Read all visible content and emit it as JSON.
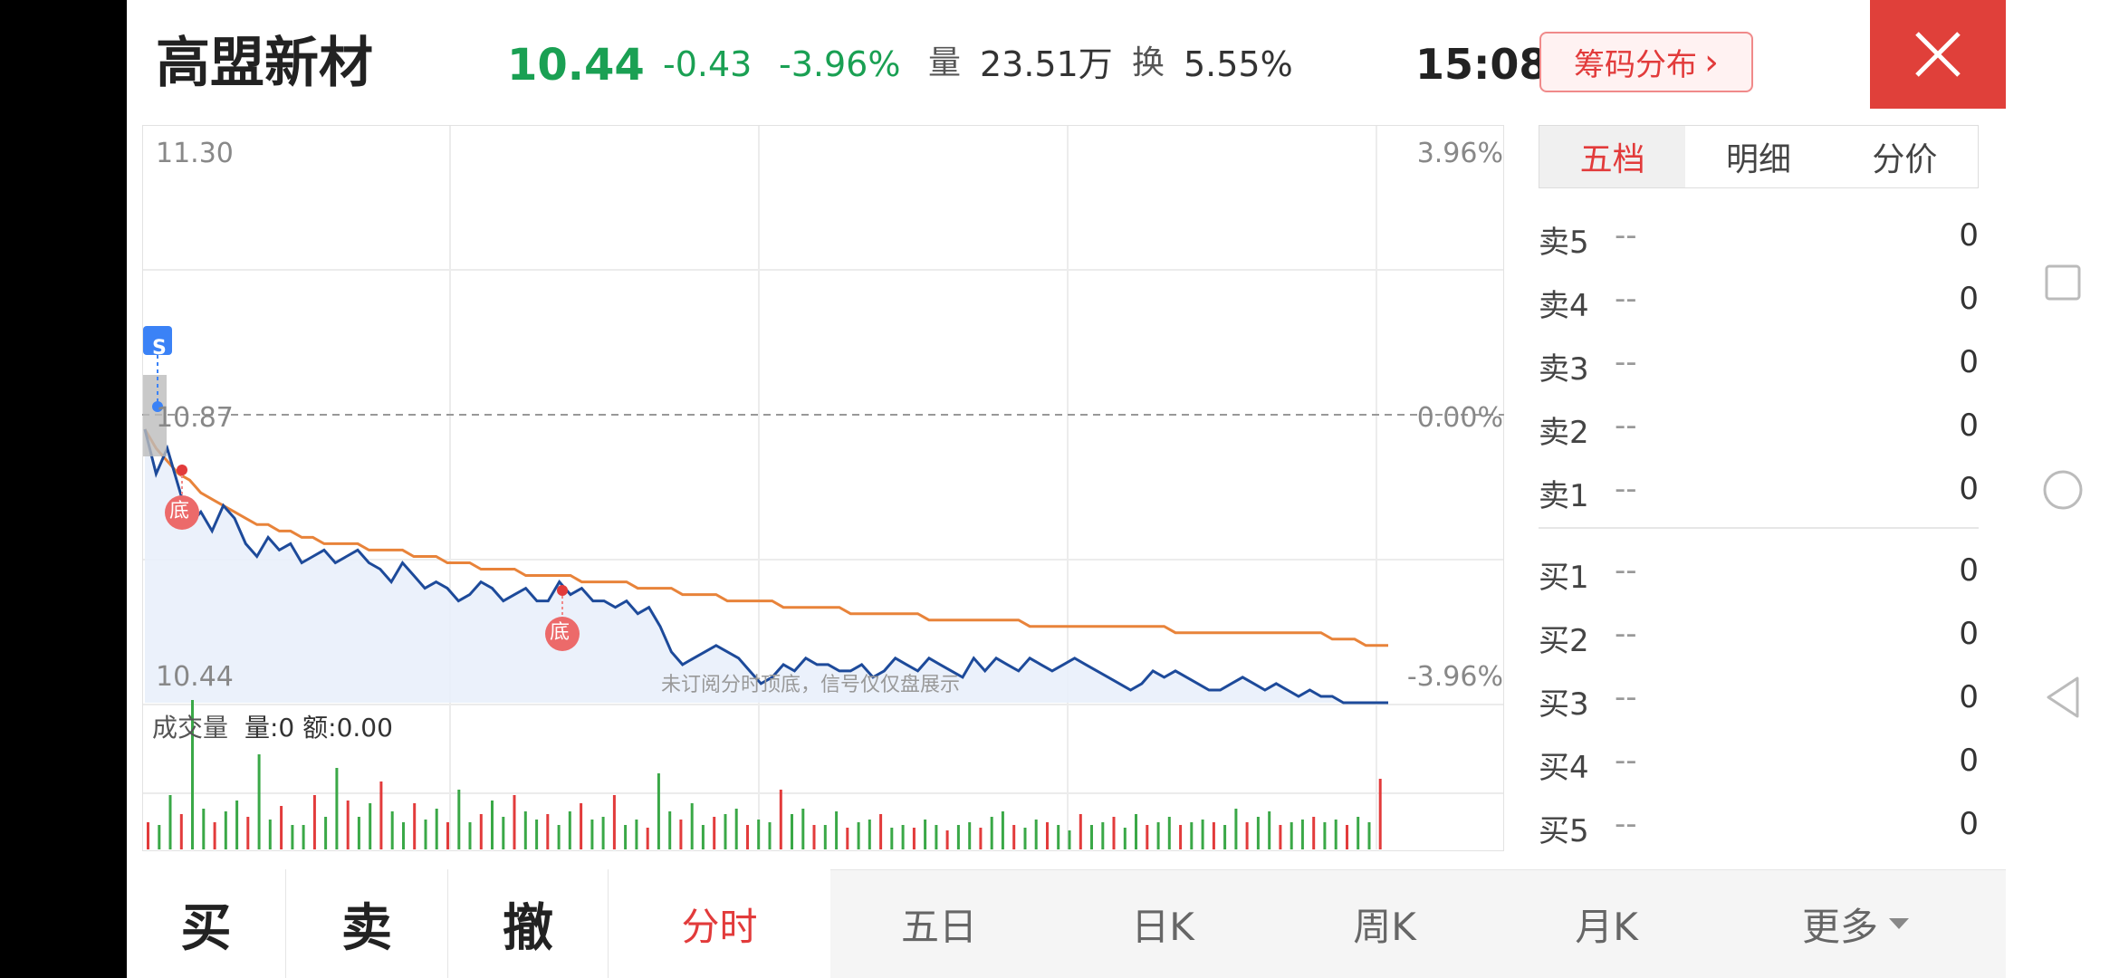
{
  "header": {
    "stock_name": "高盟新材",
    "price": "10.44",
    "change": "-0.43",
    "change_pct": "-3.96%",
    "volume_label": "量",
    "volume": "23.51万",
    "turnover_label": "换",
    "turnover": "5.55%",
    "time": "15:08",
    "chip_button": "筹码分布",
    "chip_arrow": "›"
  },
  "chart": {
    "top_price": "11.30",
    "mid_price": "10.87",
    "bottom_price": "10.44",
    "top_pct": "3.96%",
    "mid_pct": "0.00%",
    "bottom_pct": "-3.96%",
    "signal_s": "S",
    "bottom_marker": "底",
    "watermark": "未订阅分时顶底，信号仅仅盘展示",
    "volume_title": "成交量",
    "volume_stats": "量:0 额:0.00"
  },
  "chart_data": {
    "type": "line",
    "price_range": [
      10.44,
      11.3
    ],
    "series": [
      {
        "values": [
          10.87,
          10.8,
          10.84,
          10.78,
          10.72,
          10.74,
          10.71,
          10.75,
          10.73,
          10.69,
          10.67,
          10.7,
          10.68,
          10.69,
          10.66,
          10.67,
          10.68,
          10.66,
          10.67,
          10.68,
          10.66,
          10.65,
          10.63,
          10.66,
          10.64,
          10.62,
          10.63,
          10.62,
          10.6,
          10.61,
          10.63,
          10.62,
          10.6,
          10.61,
          10.62,
          10.6,
          10.6,
          10.63,
          10.61,
          10.62,
          10.6,
          10.6,
          10.59,
          10.6,
          10.58,
          10.59,
          10.56,
          10.52,
          10.5,
          10.51,
          10.52,
          10.53,
          10.52,
          10.51,
          10.49,
          10.47,
          10.48,
          10.5,
          10.49,
          10.51,
          10.5,
          10.5,
          10.49,
          10.49,
          10.5,
          10.48,
          10.49,
          10.51,
          10.5,
          10.49,
          10.51,
          10.5,
          10.49,
          10.48,
          10.51,
          10.49,
          10.51,
          10.5,
          10.49,
          10.51,
          10.5,
          10.49,
          10.5,
          10.51,
          10.5,
          10.49,
          10.48,
          10.47,
          10.46,
          10.47,
          10.49,
          10.48,
          10.49,
          10.48,
          10.47,
          10.46,
          10.46,
          10.47,
          10.48,
          10.47,
          10.46,
          10.47,
          10.46,
          10.45,
          10.46,
          10.45,
          10.45,
          10.44,
          10.44,
          10.44,
          10.44,
          10.44
        ]
      },
      {
        "values": [
          10.87,
          10.84,
          10.82,
          10.8,
          10.79,
          10.77,
          10.76,
          10.75,
          10.74,
          10.73,
          10.72,
          10.72,
          10.71,
          10.71,
          10.7,
          10.7,
          10.69,
          10.69,
          10.69,
          10.69,
          10.68,
          10.68,
          10.68,
          10.68,
          10.67,
          10.67,
          10.67,
          10.66,
          10.66,
          10.66,
          10.65,
          10.65,
          10.65,
          10.65,
          10.64,
          10.64,
          10.64,
          10.64,
          10.64,
          10.63,
          10.63,
          10.63,
          10.63,
          10.63,
          10.62,
          10.62,
          10.62,
          10.62,
          10.61,
          10.61,
          10.61,
          10.61,
          10.6,
          10.6,
          10.6,
          10.6,
          10.6,
          10.59,
          10.59,
          10.59,
          10.59,
          10.59,
          10.59,
          10.58,
          10.58,
          10.58,
          10.58,
          10.58,
          10.58,
          10.58,
          10.57,
          10.57,
          10.57,
          10.57,
          10.57,
          10.57,
          10.57,
          10.57,
          10.57,
          10.56,
          10.56,
          10.56,
          10.56,
          10.56,
          10.56,
          10.56,
          10.56,
          10.56,
          10.56,
          10.56,
          10.56,
          10.56,
          10.55,
          10.55,
          10.55,
          10.55,
          10.55,
          10.55,
          10.55,
          10.55,
          10.55,
          10.55,
          10.55,
          10.55,
          10.55,
          10.55,
          10.54,
          10.54,
          10.54,
          10.53,
          10.53,
          10.53
        ]
      }
    ],
    "volume": [
      10,
      9,
      20,
      13,
      55,
      15,
      10,
      14,
      18,
      12,
      35,
      11,
      16,
      9,
      9,
      20,
      12,
      30,
      18,
      12,
      17,
      25,
      14,
      10,
      17,
      11,
      15,
      10,
      22,
      10,
      13,
      18,
      12,
      20,
      14,
      11,
      13,
      9,
      14,
      17,
      11,
      12,
      20,
      9,
      11,
      8,
      28,
      14,
      11,
      17,
      9,
      12,
      13,
      15,
      9,
      11,
      10,
      22,
      13,
      15,
      9,
      9,
      14,
      8,
      10,
      11,
      13,
      8,
      9,
      8,
      11,
      9,
      7,
      9,
      10,
      8,
      12,
      14,
      9,
      8,
      11,
      10,
      9,
      7,
      13,
      9,
      10,
      12,
      8,
      13,
      9,
      10,
      12,
      9,
      10,
      11,
      10,
      9,
      15,
      10,
      12,
      14,
      9,
      10,
      11,
      12,
      10,
      11,
      9,
      12,
      10,
      26
    ]
  },
  "order_book": {
    "tabs": [
      "五档",
      "明细",
      "分价"
    ],
    "sell": [
      {
        "label": "卖5",
        "price": "--",
        "vol": "0"
      },
      {
        "label": "卖4",
        "price": "--",
        "vol": "0"
      },
      {
        "label": "卖3",
        "price": "--",
        "vol": "0"
      },
      {
        "label": "卖2",
        "price": "--",
        "vol": "0"
      },
      {
        "label": "卖1",
        "price": "--",
        "vol": "0"
      }
    ],
    "buy": [
      {
        "label": "买1",
        "price": "--",
        "vol": "0"
      },
      {
        "label": "买2",
        "price": "--",
        "vol": "0"
      },
      {
        "label": "买3",
        "price": "--",
        "vol": "0"
      },
      {
        "label": "买4",
        "price": "--",
        "vol": "0"
      },
      {
        "label": "买5",
        "price": "--",
        "vol": "0"
      }
    ]
  },
  "bottom": {
    "buy": "买",
    "sell": "卖",
    "cancel": "撤",
    "tabs": [
      "分时",
      "五日",
      "日K",
      "周K",
      "月K",
      "更多"
    ]
  },
  "colors": {
    "down_green": "#1aa053",
    "up_red": "#e23b3b",
    "price_line": "#1d4a9a",
    "avg_line": "#e8833a"
  }
}
